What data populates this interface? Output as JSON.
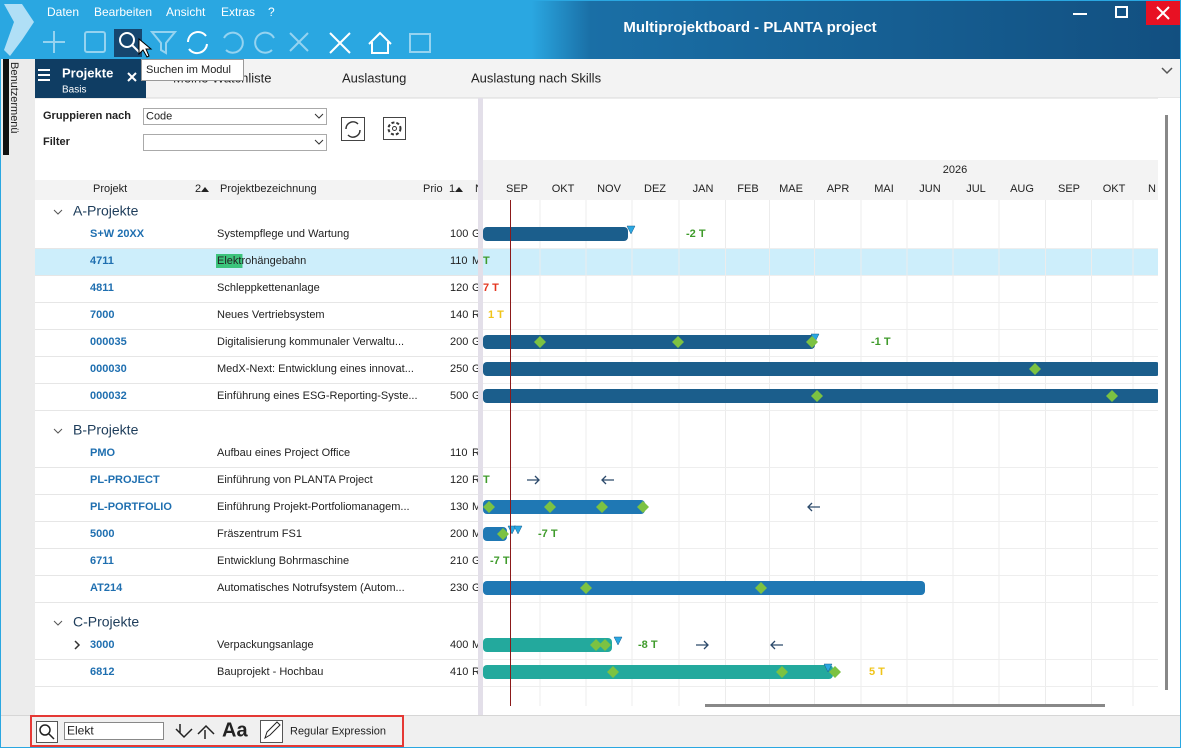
{
  "menu": [
    "Daten",
    "Bearbeiten",
    "Ansicht",
    "Extras",
    "?"
  ],
  "window_title": "Multiprojektboard - PLANTA project",
  "tooltip": "Suchen im Modul",
  "sidebar_label": "Benutzermenü",
  "panel": {
    "title": "Projekte",
    "subtitle": "Basis"
  },
  "tabs": [
    "Meine Watchliste",
    "Auslastung",
    "Auslastung nach Skills"
  ],
  "filters": {
    "group_label": "Gruppieren nach",
    "group_value": "Code",
    "filter_label": "Filter"
  },
  "columns": {
    "code": "Projekt",
    "code_sort": "2",
    "name": "Projektbezeichnung",
    "prio": "Prio",
    "prio_sort": "1",
    "status": "N"
  },
  "timeline": {
    "year": "2026",
    "months": [
      "SEP",
      "OKT",
      "NOV",
      "DEZ",
      "JAN",
      "FEB",
      "MAE",
      "APR",
      "MAI",
      "JUN",
      "JUL",
      "AUG",
      "SEP",
      "OKT",
      "N"
    ]
  },
  "groups": [
    {
      "label": "A-Projekte",
      "rows": [
        {
          "code": "S+W 20XX",
          "name": "Systempflege und Wartung",
          "prio": 100,
          "status": "G",
          "note": "-2 T"
        },
        {
          "code": "4711",
          "name": "Elektrohängebahn",
          "prio": 110,
          "status": "M",
          "note": "T"
        },
        {
          "code": "4811",
          "name": "Schleppkettenanlage",
          "prio": 120,
          "status": "G",
          "note": "7 T"
        },
        {
          "code": "7000",
          "name": "Neues Vertriebsystem",
          "prio": 140,
          "status": "R",
          "note": "1 T"
        },
        {
          "code": "000035",
          "name": "Digitalisierung kommunaler Verwaltu...",
          "prio": 200,
          "status": "G",
          "note": "-1 T"
        },
        {
          "code": "000030",
          "name": "MedX-Next: Entwicklung eines innovat...",
          "prio": 250,
          "status": "G"
        },
        {
          "code": "000032",
          "name": "Einführung eines ESG-Reporting-Syste...",
          "prio": 500,
          "status": "G"
        }
      ]
    },
    {
      "label": "B-Projekte",
      "rows": [
        {
          "code": "PMO",
          "name": "Aufbau eines Project Office",
          "prio": 110,
          "status": "R"
        },
        {
          "code": "PL-PROJECT",
          "name": "Einführung von PLANTA Project",
          "prio": 120,
          "status": "R",
          "note": "T"
        },
        {
          "code": "PL-PORTFOLIO",
          "name": "Einführung Projekt-Portfoliomanagem...",
          "prio": 130,
          "status": "M"
        },
        {
          "code": "5000",
          "name": "Fräszentrum FS1",
          "prio": 200,
          "status": "M",
          "note": "-7 T"
        },
        {
          "code": "6711",
          "name": "Entwicklung Bohrmaschine",
          "prio": 210,
          "status": "G",
          "note": "-7 T"
        },
        {
          "code": "AT214",
          "name": "Automatisches Notrufsystem (Autom...",
          "prio": 230,
          "status": "G"
        }
      ]
    },
    {
      "label": "C-Projekte",
      "rows": [
        {
          "code": "3000",
          "name": "Verpackungsanlage",
          "prio": 400,
          "status": "M",
          "note": "-8 T"
        },
        {
          "code": "6812",
          "name": "Bauprojekt - Hochbau",
          "prio": 410,
          "status": "R",
          "note": "5 T"
        }
      ]
    }
  ],
  "search": {
    "query": "Elekt",
    "case": "Aa",
    "regex": "Regular Expression"
  }
}
